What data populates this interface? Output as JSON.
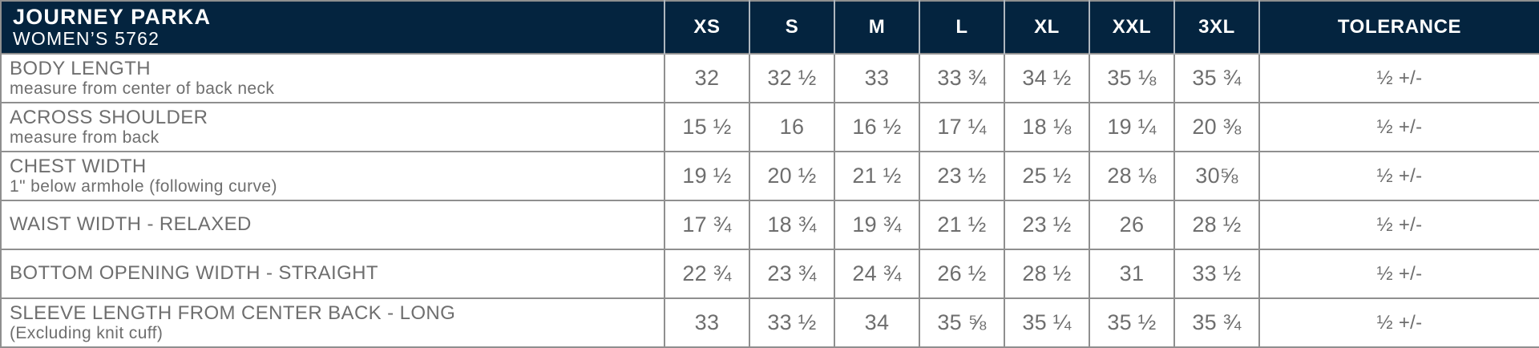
{
  "colors": {
    "header_bg": "#04243f",
    "header_text": "#ffffff",
    "body_text": "#6e6e6e",
    "grid_line": "#8f8f8f",
    "header_divider": "#aeb6be"
  },
  "chart_data": {
    "type": "table",
    "title": "JOURNEY PARKA",
    "subtitle": "WOMEN’S 5762",
    "columns": [
      "XS",
      "S",
      "M",
      "L",
      "XL",
      "XXL",
      "3XL",
      "TOLERANCE"
    ],
    "rows": [
      {
        "label": "BODY LENGTH",
        "sublabel": "measure from center of back neck",
        "values": [
          "32",
          "32 ½",
          "33",
          "33 ¾",
          "34 ½",
          "35 ⅛",
          "35 ¾"
        ],
        "tolerance": "½ +/-"
      },
      {
        "label": "ACROSS SHOULDER",
        "sublabel": "measure from back",
        "values": [
          "15 ½",
          "16",
          "16 ½",
          "17 ¼",
          "18 ⅛",
          "19 ¼",
          "20 ⅜"
        ],
        "tolerance": "½ +/-"
      },
      {
        "label": "CHEST WIDTH",
        "sublabel": "1\" below armhole (following curve)",
        "values": [
          "19 ½",
          "20 ½",
          "21 ½",
          "23 ½",
          "25 ½",
          "28 ⅛",
          "30⅝"
        ],
        "tolerance": "½ +/-"
      },
      {
        "label": "WAIST WIDTH - RELAXED",
        "sublabel": "",
        "values": [
          "17 ¾",
          "18 ¾",
          "19 ¾",
          "21 ½",
          "23 ½",
          "26",
          "28 ½"
        ],
        "tolerance": "½ +/-"
      },
      {
        "label": "BOTTOM OPENING WIDTH - STRAIGHT",
        "sublabel": "",
        "values": [
          "22 ¾",
          "23 ¾",
          "24 ¾",
          "26 ½",
          "28 ½",
          "31",
          "33 ½"
        ],
        "tolerance": "½ +/-"
      },
      {
        "label": "SLEEVE LENGTH FROM CENTER BACK - LONG",
        "sublabel": "(Excluding knit cuff)",
        "values": [
          "33",
          "33 ½",
          "34",
          "35 ⅝",
          "35 ¼",
          "35 ½",
          "35 ¾"
        ],
        "tolerance": "½ +/-"
      }
    ]
  }
}
